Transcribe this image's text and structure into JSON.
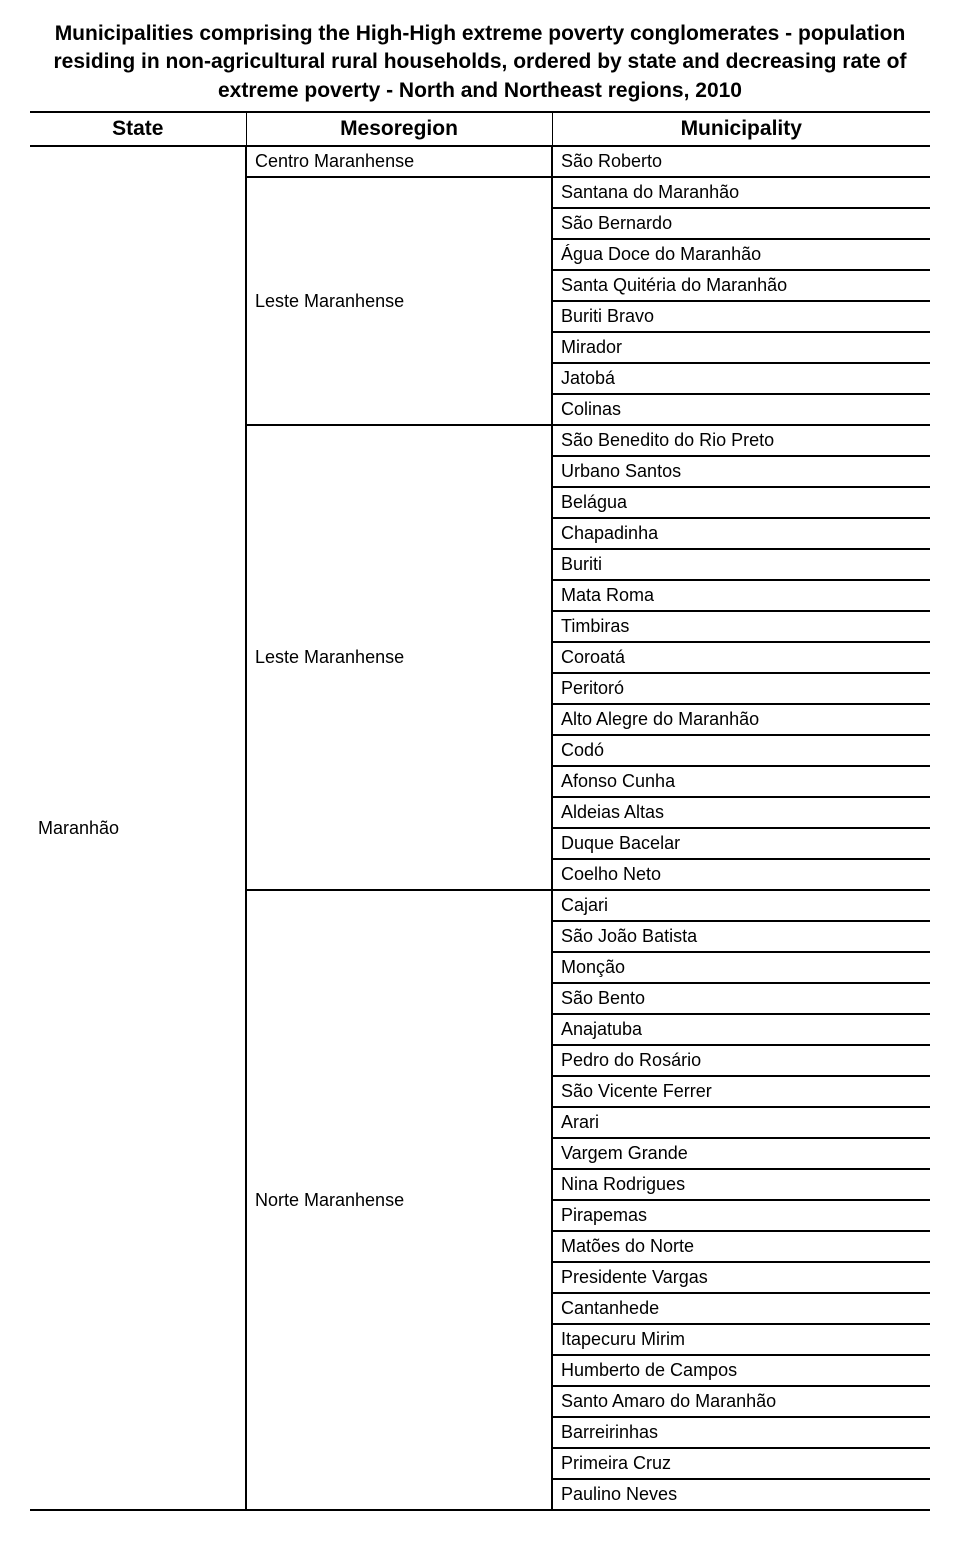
{
  "title": "Municipalities comprising the High-High extreme poverty conglomerates - population residing in non-agricultural rural households, ordered by state and decreasing rate of extreme poverty - North and Northeast regions, 2010",
  "columns": {
    "state": "State",
    "meso": "Mesoregion",
    "muni": "Municipality"
  },
  "state": "Maranhão",
  "groups": [
    {
      "meso": "Centro Maranhense",
      "municipalities": [
        "São Roberto"
      ]
    },
    {
      "meso": "Leste Maranhense",
      "municipalities": [
        "Santana do Maranhão",
        "São Bernardo",
        "Água Doce do Maranhão",
        "Santa Quitéria do Maranhão",
        "Buriti Bravo",
        "Mirador",
        "Jatobá",
        "Colinas"
      ]
    },
    {
      "meso": "Leste Maranhense",
      "municipalities": [
        "São Benedito do Rio Preto",
        "Urbano Santos",
        "Belágua",
        "Chapadinha",
        "Buriti",
        "Mata Roma",
        "Timbiras",
        "Coroatá",
        "Peritoró",
        "Alto Alegre do Maranhão",
        "Codó",
        "Afonso Cunha",
        "Aldeias Altas",
        "Duque Bacelar",
        "Coelho Neto"
      ]
    },
    {
      "meso": "Norte Maranhense",
      "municipalities": [
        "Cajari",
        "São João Batista",
        "Monção",
        "São Bento",
        "Anajatuba",
        "Pedro do Rosário",
        "São Vicente Ferrer",
        "Arari",
        "Vargem Grande",
        "Nina Rodrigues",
        "Pirapemas",
        "Matões do Norte",
        "Presidente Vargas",
        "Cantanhede",
        "Itapecuru Mirim",
        "Humberto de Campos",
        "Santo Amaro do Maranhão",
        "Barreirinhas",
        "Primeira Cruz",
        "Paulino Neves"
      ]
    }
  ],
  "style": {
    "title_fontsize": 21,
    "header_fontsize": 21,
    "body_fontsize": 18,
    "border_color": "#000000",
    "background": "#ffffff",
    "font_family": "Arial"
  }
}
